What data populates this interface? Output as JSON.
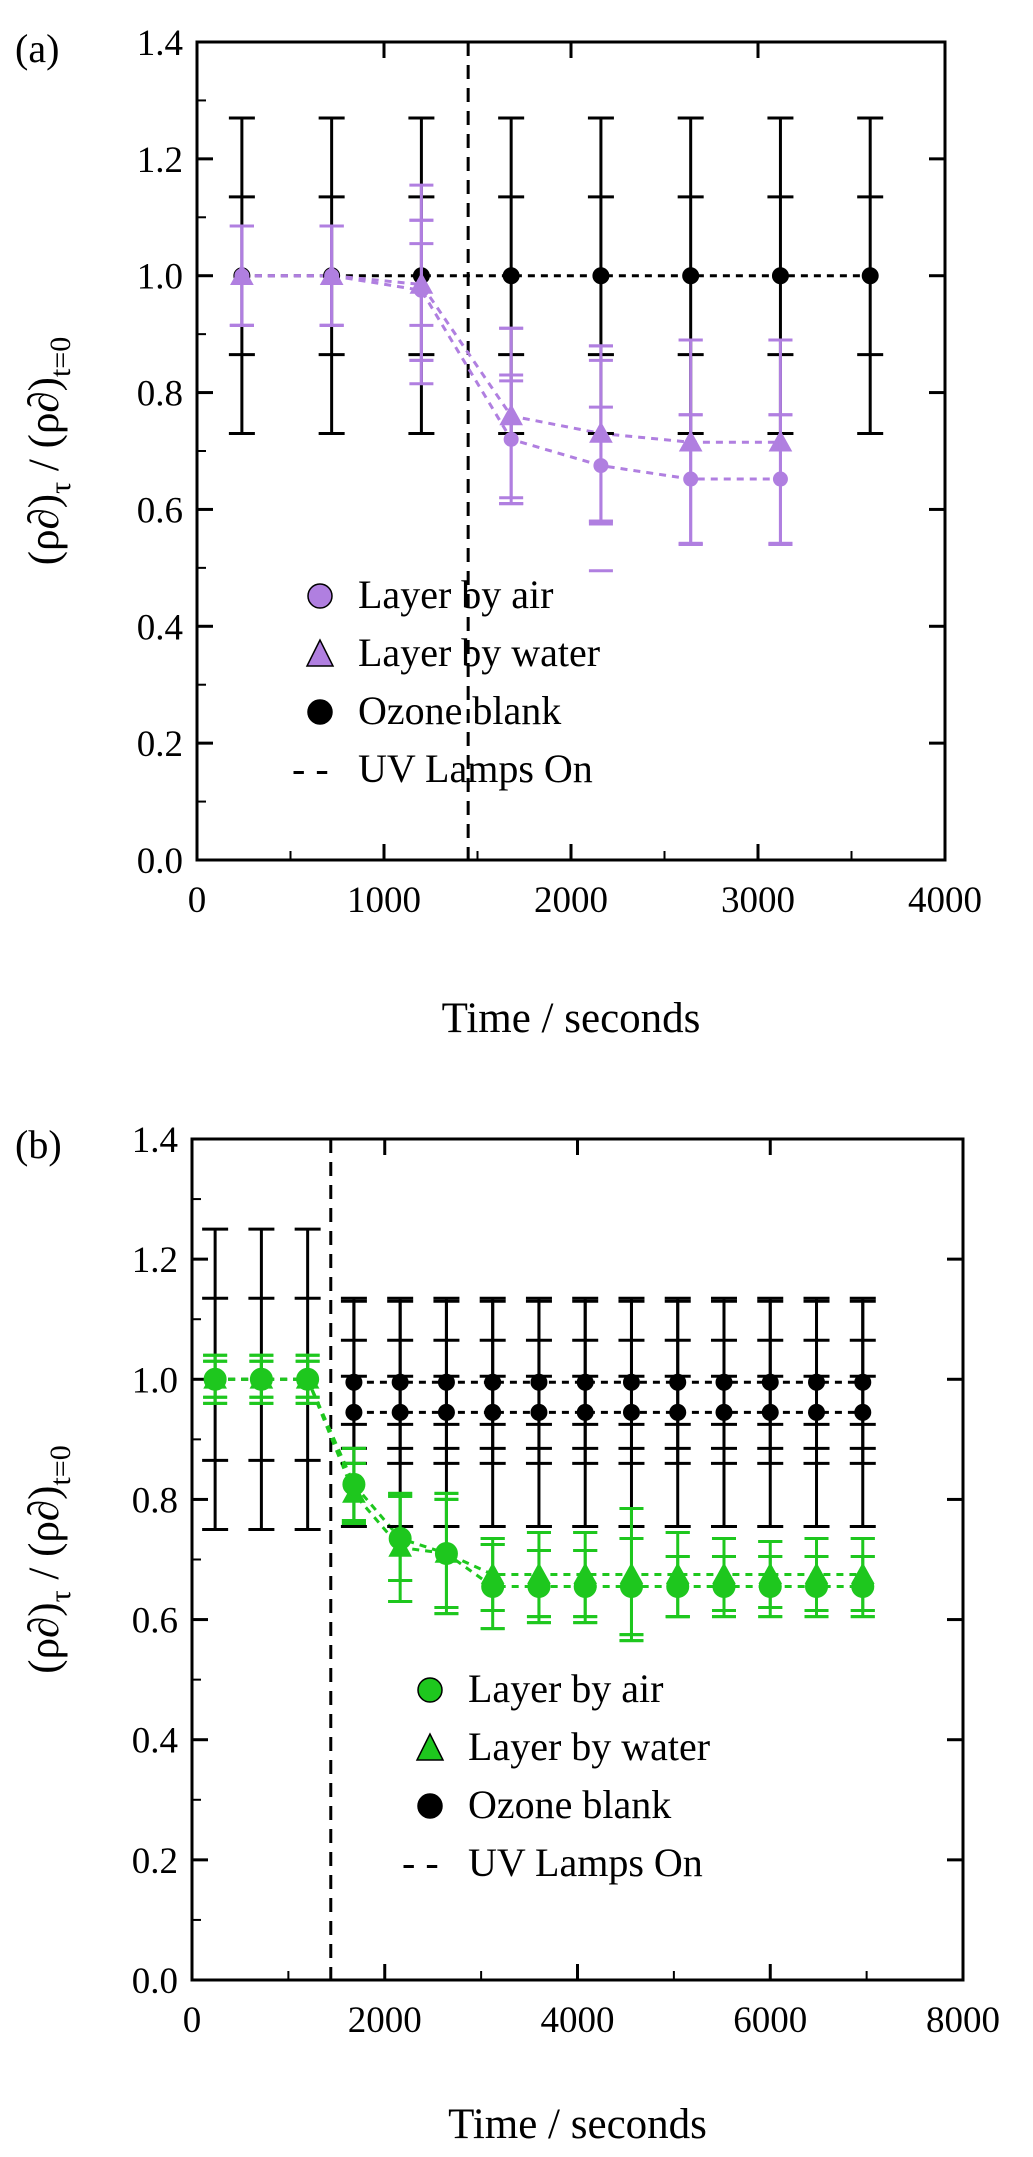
{
  "chart_data": [
    {
      "type": "scatter",
      "panel_label": "(a)",
      "title": "",
      "xlabel": "Time / seconds",
      "ylabel": {
        "main": "(ρ∂)",
        "sub1": "τ",
        "mid": " / (ρ∂)",
        "sub2": "t=0"
      },
      "xlim": [
        0,
        4000
      ],
      "ylim": [
        0,
        1.4
      ],
      "xticks": [
        0,
        1000,
        2000,
        3000,
        4000
      ],
      "yticks": [
        0.0,
        0.2,
        0.4,
        0.6,
        0.8,
        1.0,
        1.2,
        1.4
      ],
      "xtick_labels": [
        "0",
        "1000",
        "2000",
        "3000",
        "4000"
      ],
      "ytick_labels": [
        "0.0",
        "0.2",
        "0.4",
        "0.6",
        "0.8",
        "1.0",
        "1.2",
        "1.4"
      ],
      "vline": {
        "x": 1450,
        "name": "UV Lamps On"
      },
      "legend_position": "lower-middle",
      "series": [
        {
          "name": "Ozone blank",
          "marker": "circle",
          "color": "#000000",
          "x": [
            240,
            720,
            1200,
            1680,
            2160,
            2640,
            3120,
            3600
          ],
          "y": [
            1.0,
            1.0,
            1.0,
            1.0,
            1.0,
            1.0,
            1.0,
            1.0
          ],
          "err_outer": [
            0.27,
            0.27,
            0.27,
            0.27,
            0.27,
            0.27,
            0.27,
            0.27
          ],
          "err_inner": [
            0.135,
            0.135,
            0.135,
            0.135,
            0.135,
            0.135,
            0.135,
            0.135
          ]
        },
        {
          "name": "Layer by water",
          "marker": "triangle",
          "color": "#b07fe0",
          "x": [
            240,
            720,
            1200,
            1680,
            2160,
            2640,
            3120
          ],
          "y": [
            1.0,
            1.0,
            0.985,
            0.76,
            0.73,
            0.715,
            0.715
          ],
          "err_outer": [
            0.085,
            0.085,
            0.17,
            0.15,
            0.15,
            0.175,
            0.175
          ],
          "err_inner": [
            0.085,
            0.085,
            0.07,
            0.15,
            0.15,
            0.175,
            0.175
          ]
        },
        {
          "name": "Layer by air",
          "marker": "circle",
          "color": "#b07fe0",
          "x": [
            240,
            720,
            1200,
            1680,
            2160,
            2640,
            3120
          ],
          "y": [
            1.0,
            1.0,
            0.975,
            0.72,
            0.675,
            0.652,
            0.652
          ],
          "err_outer": [
            0.085,
            0.085,
            0.12,
            0.1,
            0.1,
            0.11,
            0.11
          ],
          "err_inner": [
            0.085,
            0.085,
            0.12,
            0.11,
            0.18,
            0.11,
            0.11
          ]
        }
      ],
      "legend": [
        {
          "label": "Layer by air",
          "marker": "circle",
          "color": "#b07fe0"
        },
        {
          "label": "Layer by water",
          "marker": "triangle",
          "color": "#b07fe0"
        },
        {
          "label": "Ozone blank",
          "marker": "circle",
          "color": "#000000"
        },
        {
          "label": "UV Lamps On",
          "marker": "dash",
          "color": "#000000",
          "prefix": "- -"
        }
      ]
    },
    {
      "type": "scatter",
      "panel_label": "(b)",
      "title": "",
      "xlabel": "Time / seconds",
      "ylabel": {
        "main": "(ρ∂)",
        "sub1": "τ",
        "mid": " / (ρ∂)",
        "sub2": "t=0"
      },
      "xlim": [
        0,
        8000
      ],
      "ylim": [
        0,
        1.4
      ],
      "xticks": [
        0,
        2000,
        4000,
        6000,
        8000
      ],
      "yticks": [
        0.0,
        0.2,
        0.4,
        0.6,
        0.8,
        1.0,
        1.2,
        1.4
      ],
      "xtick_labels": [
        "0",
        "2000",
        "4000",
        "6000",
        "8000"
      ],
      "ytick_labels": [
        "0.0",
        "0.2",
        "0.4",
        "0.6",
        "0.8",
        "1.0",
        "1.2",
        "1.4"
      ],
      "vline": {
        "x": 1440,
        "name": "UV Lamps On"
      },
      "legend_position": "lower-middle",
      "series": [
        {
          "name": "Ozone blank",
          "marker": "circle",
          "color": "#000000",
          "x": [
            240,
            720,
            1200
          ],
          "y": [
            1.0,
            1.0,
            1.0
          ],
          "err_outer": [
            0.25,
            0.25,
            0.25
          ],
          "err_inner": [
            0.135,
            0.135,
            0.135
          ]
        },
        {
          "name": "Ozone blank",
          "marker": "circle",
          "color": "#000000",
          "x": [
            1680,
            2160,
            2640,
            3120,
            3600,
            4080,
            4560,
            5040,
            5520,
            6000,
            6480,
            6960
          ],
          "y": [
            0.995,
            0.995,
            0.995,
            0.995,
            0.995,
            0.995,
            0.995,
            0.995,
            0.995,
            0.995,
            0.995,
            0.995
          ],
          "err_outer": [
            0.135,
            0.135,
            0.135,
            0.135,
            0.135,
            0.135,
            0.135,
            0.135,
            0.135,
            0.135,
            0.135,
            0.135
          ],
          "err_inner": [
            0.07,
            0.07,
            0.07,
            0.07,
            0.07,
            0.07,
            0.07,
            0.07,
            0.07,
            0.07,
            0.07,
            0.07
          ]
        },
        {
          "name": "Ozone blank",
          "marker": "circle",
          "color": "#000000",
          "x": [
            1680,
            2160,
            2640,
            3120,
            3600,
            4080,
            4560,
            5040,
            5520,
            6000,
            6480,
            6960
          ],
          "y": [
            0.945,
            0.945,
            0.945,
            0.945,
            0.945,
            0.945,
            0.945,
            0.945,
            0.945,
            0.945,
            0.945,
            0.945
          ],
          "err_outer": [
            0.19,
            0.19,
            0.19,
            0.19,
            0.19,
            0.19,
            0.19,
            0.19,
            0.19,
            0.19,
            0.19,
            0.19
          ],
          "err_inner": [
            0.06,
            0.06,
            0.06,
            0.06,
            0.06,
            0.06,
            0.06,
            0.06,
            0.06,
            0.06,
            0.06,
            0.06
          ]
        },
        {
          "name": "Layer by water",
          "marker": "triangle",
          "color": "#1ec71e",
          "x": [
            240,
            720,
            1200,
            1680,
            2160,
            2640,
            3120,
            3600,
            4080,
            4560,
            5040,
            5520,
            6000,
            6480,
            6960
          ],
          "y": [
            1.0,
            1.0,
            1.0,
            0.81,
            0.72,
            0.71,
            0.675,
            0.675,
            0.675,
            0.675,
            0.675,
            0.675,
            0.675,
            0.675,
            0.675
          ],
          "err_outer": [
            0.04,
            0.04,
            0.04,
            0.05,
            0.09,
            0.1,
            0.06,
            0.07,
            0.07,
            0.11,
            0.07,
            0.06,
            0.055,
            0.06,
            0.06
          ],
          "err_inner": [
            0.04,
            0.04,
            0.04,
            0.05,
            0.09,
            0.1,
            0.06,
            0.07,
            0.07,
            0.11,
            0.07,
            0.06,
            0.055,
            0.06,
            0.06
          ]
        },
        {
          "name": "Layer by air",
          "marker": "circle",
          "color": "#1ec71e",
          "x": [
            240,
            720,
            1200,
            1680,
            2160,
            2640,
            3120,
            3600,
            4080,
            4560,
            5040,
            5520,
            6000,
            6480,
            6960
          ],
          "y": [
            1.0,
            1.0,
            1.0,
            0.825,
            0.735,
            0.71,
            0.655,
            0.655,
            0.655,
            0.655,
            0.655,
            0.655,
            0.655,
            0.655,
            0.655
          ],
          "err_outer": [
            0.03,
            0.03,
            0.03,
            0.06,
            0.07,
            0.09,
            0.07,
            0.06,
            0.06,
            0.08,
            0.05,
            0.05,
            0.05,
            0.05,
            0.05
          ],
          "err_inner": [
            0.03,
            0.03,
            0.03,
            0.06,
            0.07,
            0.09,
            0.07,
            0.06,
            0.06,
            0.08,
            0.05,
            0.05,
            0.05,
            0.05,
            0.05
          ]
        }
      ],
      "legend": [
        {
          "label": "Layer by air",
          "marker": "circle",
          "color": "#1ec71e"
        },
        {
          "label": "Layer by water",
          "marker": "triangle",
          "color": "#1ec71e"
        },
        {
          "label": "Ozone blank",
          "marker": "circle",
          "color": "#000000"
        },
        {
          "label": "UV Lamps On",
          "marker": "dash",
          "color": "#000000",
          "prefix": "- -"
        }
      ]
    }
  ]
}
